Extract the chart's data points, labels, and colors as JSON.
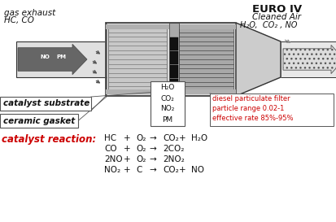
{
  "bg_color": "#ffffff",
  "left_label1": "gas exhaust",
  "left_label2": "HC, CO",
  "right_label_top": "EURO IV",
  "right_label_bot": "Cleaned Air",
  "right_products": "H₂O,  CO₂ , NO",
  "center_box_labels": [
    "H₂O",
    "CO₂",
    "NO₂",
    "PM"
  ],
  "label_substrate": "catalyst substrate",
  "label_gasket": "ceramic gasket",
  "dpf_label": [
    "diesel particulate filter",
    "particle range 0.02-1",
    "effective rate 85%-95%"
  ],
  "rxn_label": "catalyst reaction:",
  "reactions": [
    [
      "HC",
      "+",
      "O₂",
      "→",
      "CO₂",
      "+",
      "H₂O"
    ],
    [
      "CO",
      "+",
      "O₂",
      "→",
      "2CO₂",
      "",
      ""
    ],
    [
      "2NO",
      "+",
      "O₂",
      "→",
      "2NO₂",
      "",
      ""
    ],
    [
      "NO₂",
      "+",
      "C",
      "→",
      "CO₂",
      "+",
      "NO"
    ]
  ],
  "rxn_color": "#cc0000",
  "col_dark": "#444444",
  "col_mid": "#888888",
  "col_light": "#cccccc",
  "col_lighter": "#e0e0e0"
}
